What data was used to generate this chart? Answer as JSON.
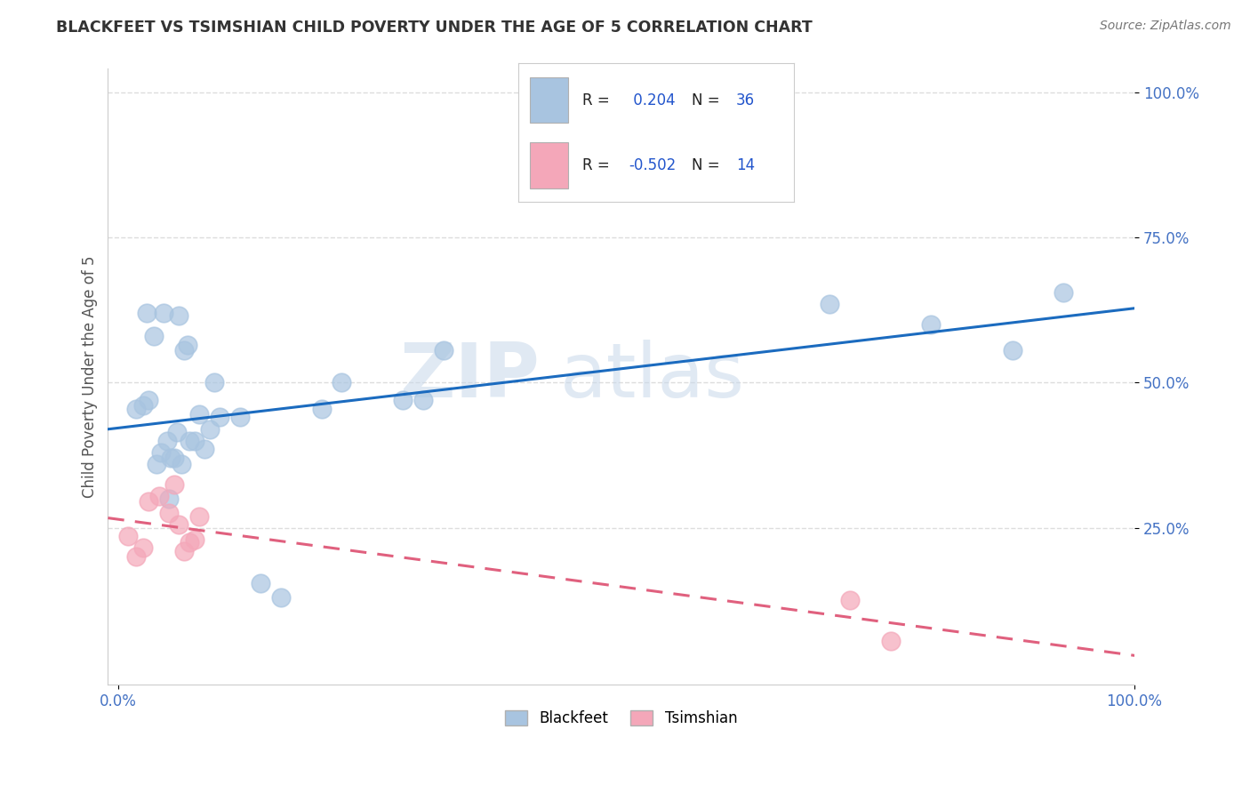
{
  "title": "BLACKFEET VS TSIMSHIAN CHILD POVERTY UNDER THE AGE OF 5 CORRELATION CHART",
  "source": "Source: ZipAtlas.com",
  "ylabel": "Child Poverty Under the Age of 5",
  "watermark_line1": "ZIP",
  "watermark_line2": "atlas",
  "blackfeet_R": 0.204,
  "blackfeet_N": 36,
  "tsimshian_R": -0.502,
  "tsimshian_N": 14,
  "blackfeet_color": "#a8c4e0",
  "blackfeet_line_color": "#1b6bbf",
  "tsimshian_color": "#f4a7b9",
  "tsimshian_line_color": "#e0607e",
  "blackfeet_x": [
    0.018,
    0.025,
    0.028,
    0.03,
    0.035,
    0.038,
    0.042,
    0.045,
    0.048,
    0.05,
    0.052,
    0.055,
    0.058,
    0.06,
    0.062,
    0.065,
    0.068,
    0.07,
    0.075,
    0.08,
    0.085,
    0.09,
    0.095,
    0.1,
    0.12,
    0.14,
    0.16,
    0.2,
    0.22,
    0.28,
    0.3,
    0.32,
    0.7,
    0.8,
    0.88,
    0.93
  ],
  "blackfeet_y": [
    0.455,
    0.46,
    0.62,
    0.47,
    0.58,
    0.36,
    0.38,
    0.62,
    0.4,
    0.3,
    0.37,
    0.37,
    0.415,
    0.615,
    0.36,
    0.555,
    0.565,
    0.4,
    0.4,
    0.445,
    0.385,
    0.42,
    0.5,
    0.44,
    0.44,
    0.155,
    0.13,
    0.455,
    0.5,
    0.47,
    0.47,
    0.555,
    0.635,
    0.6,
    0.555,
    0.655
  ],
  "tsimshian_x": [
    0.01,
    0.018,
    0.025,
    0.03,
    0.04,
    0.05,
    0.055,
    0.06,
    0.065,
    0.07,
    0.075,
    0.08,
    0.72,
    0.76
  ],
  "tsimshian_y": [
    0.235,
    0.2,
    0.215,
    0.295,
    0.305,
    0.275,
    0.325,
    0.255,
    0.21,
    0.225,
    0.23,
    0.27,
    0.125,
    0.055
  ],
  "xlim": [
    -0.01,
    1.0
  ],
  "ylim": [
    -0.02,
    1.04
  ],
  "xtick_positions": [
    0.0,
    1.0
  ],
  "xticklabels": [
    "0.0%",
    "100.0%"
  ],
  "ytick_positions": [
    0.25,
    0.5,
    0.75,
    1.0
  ],
  "yticklabels": [
    "25.0%",
    "50.0%",
    "75.0%",
    "100.0%"
  ],
  "background_color": "#ffffff",
  "grid_color": "#dddddd",
  "title_color": "#333333",
  "source_color": "#777777",
  "tick_color": "#4472c4",
  "axis_label_color": "#555555"
}
